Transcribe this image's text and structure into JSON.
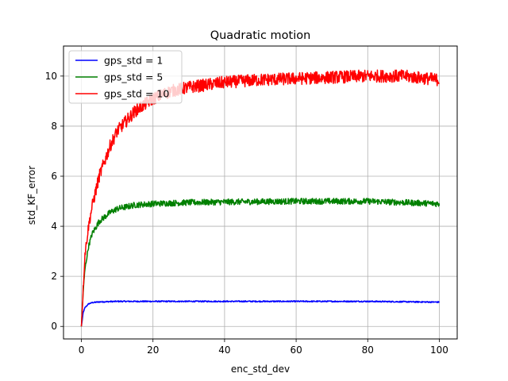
{
  "chart_data": {
    "type": "line",
    "title": "Quadratic motion",
    "xlabel": "enc_std_dev",
    "ylabel": "std_KF_error",
    "xlim": [
      -5,
      105
    ],
    "ylim": [
      -0.5,
      11.2
    ],
    "xticks": [
      0,
      20,
      40,
      60,
      80,
      100
    ],
    "yticks": [
      0,
      2,
      4,
      6,
      8,
      10
    ],
    "grid": true,
    "legend_position": "top-left",
    "series": [
      {
        "name": "gps_std = 1",
        "color": "#0000ff",
        "plateau": 1,
        "noise_amplitude": 0.025,
        "points": [
          [
            0,
            0
          ],
          [
            0.5,
            0.55
          ],
          [
            1,
            0.75
          ],
          [
            2,
            0.9
          ],
          [
            3,
            0.95
          ],
          [
            5,
            0.98
          ],
          [
            10,
            1.0
          ],
          [
            20,
            1.0
          ],
          [
            40,
            1.0
          ],
          [
            60,
            1.0
          ],
          [
            80,
            1.0
          ],
          [
            100,
            0.97
          ]
        ]
      },
      {
        "name": "gps_std = 5",
        "color": "#008000",
        "plateau": 5,
        "noise_amplitude": 0.12,
        "points": [
          [
            0,
            0
          ],
          [
            0.5,
            1.4
          ],
          [
            1,
            2.3
          ],
          [
            2,
            3.2
          ],
          [
            3,
            3.7
          ],
          [
            5,
            4.2
          ],
          [
            8,
            4.55
          ],
          [
            10,
            4.7
          ],
          [
            15,
            4.85
          ],
          [
            20,
            4.9
          ],
          [
            30,
            4.95
          ],
          [
            40,
            4.97
          ],
          [
            60,
            5.0
          ],
          [
            80,
            5.0
          ],
          [
            100,
            4.9
          ]
        ]
      },
      {
        "name": "gps_std = 10",
        "color": "#ff0000",
        "plateau": 10,
        "noise_amplitude": 0.25,
        "points": [
          [
            0,
            0
          ],
          [
            0.5,
            1.5
          ],
          [
            1,
            2.9
          ],
          [
            2,
            4.0
          ],
          [
            3,
            4.8
          ],
          [
            5,
            6.0
          ],
          [
            8,
            7.2
          ],
          [
            10,
            7.8
          ],
          [
            15,
            8.6
          ],
          [
            20,
            9.1
          ],
          [
            25,
            9.4
          ],
          [
            30,
            9.55
          ],
          [
            40,
            9.75
          ],
          [
            50,
            9.85
          ],
          [
            60,
            9.9
          ],
          [
            70,
            9.95
          ],
          [
            80,
            10.0
          ],
          [
            90,
            10.0
          ],
          [
            100,
            9.85
          ]
        ]
      }
    ]
  }
}
